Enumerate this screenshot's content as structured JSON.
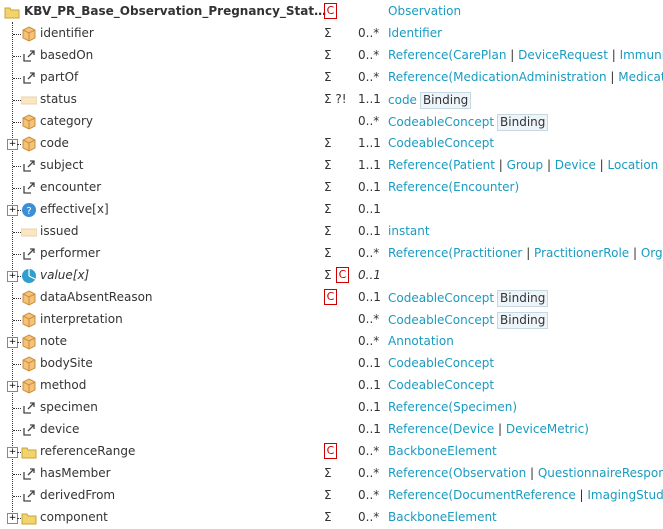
{
  "colors": {
    "link": "#1a9bc0",
    "constraint": "#cc0000"
  },
  "rows": [
    {
      "name": "KBV_PR_Base_Observation_Pregnancy_Stat…",
      "icon": "folder-icon",
      "root": true,
      "flags": "",
      "c": true,
      "card": "",
      "type": [
        {
          "t": "Observation",
          "l": true
        }
      ]
    },
    {
      "name": "identifier",
      "icon": "element-cube-icon",
      "flags": "Σ",
      "card": "0..*",
      "type": [
        {
          "t": "Identifier",
          "l": true
        }
      ]
    },
    {
      "name": "basedOn",
      "icon": "reference-link-icon",
      "flags": "Σ",
      "card": "0..*",
      "type": [
        {
          "t": "Reference(",
          "l": true
        },
        {
          "t": "CarePlan",
          "l": true
        },
        {
          "t": " | "
        },
        {
          "t": "DeviceRequest",
          "l": true
        },
        {
          "t": " | "
        },
        {
          "t": "Immuni…",
          "l": true
        }
      ]
    },
    {
      "name": "partOf",
      "icon": "reference-link-icon",
      "flags": "Σ",
      "card": "0..*",
      "type": [
        {
          "t": "Reference(",
          "l": true
        },
        {
          "t": "MedicationAdministration",
          "l": true
        },
        {
          "t": " | "
        },
        {
          "t": "Medicati…",
          "l": true
        }
      ]
    },
    {
      "name": "status",
      "icon": "primitive-icon",
      "flags": "Σ ?!",
      "card": "1..1",
      "type": [
        {
          "t": "code",
          "l": true
        }
      ],
      "binding": "Binding"
    },
    {
      "name": "category",
      "icon": "element-cube-icon",
      "flags": "",
      "card": "0..*",
      "type": [
        {
          "t": "CodeableConcept",
          "l": true
        }
      ],
      "binding": "Binding"
    },
    {
      "name": "code",
      "icon": "element-cube-icon",
      "expand": true,
      "flags": "Σ",
      "card": "1..1",
      "type": [
        {
          "t": "CodeableConcept",
          "l": true
        }
      ]
    },
    {
      "name": "subject",
      "icon": "reference-link-icon",
      "flags": "Σ",
      "card": "1..1",
      "type": [
        {
          "t": "Reference(",
          "l": true
        },
        {
          "t": "Patient",
          "l": true
        },
        {
          "t": " | "
        },
        {
          "t": "Group",
          "l": true
        },
        {
          "t": " | "
        },
        {
          "t": "Device",
          "l": true
        },
        {
          "t": " | "
        },
        {
          "t": "Location",
          "l": true
        },
        {
          "t": " | …"
        }
      ]
    },
    {
      "name": "encounter",
      "icon": "reference-link-icon",
      "flags": "Σ",
      "card": "0..1",
      "type": [
        {
          "t": "Reference(",
          "l": true
        },
        {
          "t": "Encounter",
          "l": true
        },
        {
          "t": ")",
          "l": true
        }
      ]
    },
    {
      "name": "effective[x]",
      "icon": "choice-question-icon",
      "expand": true,
      "flags": "Σ",
      "card": "0..1",
      "type": []
    },
    {
      "name": "issued",
      "icon": "primitive-icon",
      "flags": "Σ",
      "card": "0..1",
      "type": [
        {
          "t": "instant",
          "l": true
        }
      ]
    },
    {
      "name": "performer",
      "icon": "reference-link-icon",
      "flags": "Σ",
      "card": "0..*",
      "type": [
        {
          "t": "Reference(",
          "l": true
        },
        {
          "t": "Practitioner",
          "l": true
        },
        {
          "t": " | "
        },
        {
          "t": "PractitionerRole",
          "l": true
        },
        {
          "t": " | "
        },
        {
          "t": "Orga…",
          "l": true
        }
      ]
    },
    {
      "name": "value[x]",
      "icon": "slice-pie-icon",
      "expand": true,
      "italic": true,
      "flags": "Σ",
      "c": true,
      "card": "0..1",
      "type": []
    },
    {
      "name": "dataAbsentReason",
      "icon": "element-cube-icon",
      "flags": "",
      "c": true,
      "card": "0..1",
      "type": [
        {
          "t": "CodeableConcept",
          "l": true
        }
      ],
      "binding": "Binding"
    },
    {
      "name": "interpretation",
      "icon": "element-cube-icon",
      "flags": "",
      "card": "0..*",
      "type": [
        {
          "t": "CodeableConcept",
          "l": true
        }
      ],
      "binding": "Binding"
    },
    {
      "name": "note",
      "icon": "element-cube-icon",
      "expand": true,
      "flags": "",
      "card": "0..*",
      "type": [
        {
          "t": "Annotation",
          "l": true
        }
      ]
    },
    {
      "name": "bodySite",
      "icon": "element-cube-icon",
      "flags": "",
      "card": "0..1",
      "type": [
        {
          "t": "CodeableConcept",
          "l": true
        }
      ]
    },
    {
      "name": "method",
      "icon": "element-cube-icon",
      "expand": true,
      "flags": "",
      "card": "0..1",
      "type": [
        {
          "t": "CodeableConcept",
          "l": true
        }
      ]
    },
    {
      "name": "specimen",
      "icon": "reference-link-icon",
      "flags": "",
      "card": "0..1",
      "type": [
        {
          "t": "Reference(",
          "l": true
        },
        {
          "t": "Specimen",
          "l": true
        },
        {
          "t": ")",
          "l": true
        }
      ]
    },
    {
      "name": "device",
      "icon": "reference-link-icon",
      "flags": "",
      "card": "0..1",
      "type": [
        {
          "t": "Reference(",
          "l": true
        },
        {
          "t": "Device",
          "l": true
        },
        {
          "t": " | "
        },
        {
          "t": "DeviceMetric",
          "l": true
        },
        {
          "t": ")",
          "l": true
        }
      ]
    },
    {
      "name": "referenceRange",
      "icon": "folder-icon",
      "expand": true,
      "flags": "",
      "c": true,
      "card": "0..*",
      "type": [
        {
          "t": "BackboneElement",
          "l": true
        }
      ]
    },
    {
      "name": "hasMember",
      "icon": "reference-link-icon",
      "flags": "Σ",
      "card": "0..*",
      "type": [
        {
          "t": "Reference(",
          "l": true
        },
        {
          "t": "Observation",
          "l": true
        },
        {
          "t": " | "
        },
        {
          "t": "QuestionnaireRespons…",
          "l": true
        }
      ]
    },
    {
      "name": "derivedFrom",
      "icon": "reference-link-icon",
      "flags": "Σ",
      "card": "0..*",
      "type": [
        {
          "t": "Reference(",
          "l": true
        },
        {
          "t": "DocumentReference",
          "l": true
        },
        {
          "t": " | "
        },
        {
          "t": "ImagingStudy…",
          "l": true
        }
      ]
    },
    {
      "name": "component",
      "icon": "folder-icon",
      "expand": true,
      "flags": "Σ",
      "card": "0..*",
      "type": [
        {
          "t": "BackboneElement",
          "l": true
        }
      ]
    }
  ]
}
